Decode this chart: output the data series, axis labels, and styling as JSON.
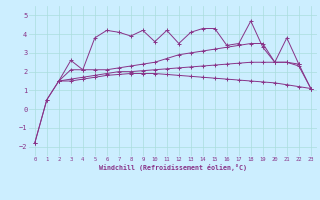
{
  "background_color": "#cceeff",
  "grid_color": "#aadddd",
  "line_color": "#883388",
  "marker": "+",
  "xlabel": "Windchill (Refroidissement éolien,°C)",
  "xlim": [
    -0.5,
    23.5
  ],
  "ylim": [
    -2.5,
    5.5
  ],
  "yticks": [
    -2,
    -1,
    0,
    1,
    2,
    3,
    4,
    5
  ],
  "xticks": [
    0,
    1,
    2,
    3,
    4,
    5,
    6,
    7,
    8,
    9,
    10,
    11,
    12,
    13,
    14,
    15,
    16,
    17,
    18,
    19,
    20,
    21,
    22,
    23
  ],
  "lines": [
    {
      "x": [
        0,
        1,
        2,
        3,
        4,
        5,
        6,
        7,
        8,
        9,
        10,
        11,
        12,
        13,
        14,
        15,
        16,
        17,
        18,
        19,
        20,
        21,
        22,
        23
      ],
      "y": [
        -1.8,
        0.5,
        1.5,
        2.6,
        2.1,
        3.8,
        4.2,
        4.1,
        3.9,
        4.2,
        3.6,
        4.2,
        3.5,
        4.1,
        4.3,
        4.3,
        3.4,
        3.5,
        4.7,
        3.3,
        2.5,
        3.8,
        2.4,
        null
      ]
    },
    {
      "x": [
        0,
        1,
        2,
        3,
        4,
        5,
        6,
        7,
        8,
        9,
        10,
        11,
        12,
        13,
        14,
        15,
        16,
        17,
        18,
        19,
        20,
        21,
        22,
        23
      ],
      "y": [
        -1.8,
        0.5,
        1.5,
        2.1,
        2.1,
        2.1,
        2.1,
        2.2,
        2.3,
        2.4,
        2.5,
        2.7,
        2.9,
        3.0,
        3.1,
        3.2,
        3.3,
        3.4,
        3.5,
        3.5,
        2.5,
        2.5,
        2.3,
        1.1
      ]
    },
    {
      "x": [
        2,
        3,
        4,
        5,
        6,
        7,
        8,
        9,
        10,
        11,
        12,
        13,
        14,
        15,
        16,
        17,
        18,
        19,
        20,
        21,
        22,
        23
      ],
      "y": [
        1.5,
        1.5,
        1.6,
        1.7,
        1.8,
        1.85,
        1.9,
        1.9,
        1.9,
        1.85,
        1.8,
        1.75,
        1.7,
        1.65,
        1.6,
        1.55,
        1.5,
        1.45,
        1.4,
        1.3,
        1.2,
        1.1
      ]
    },
    {
      "x": [
        2,
        3,
        4,
        5,
        6,
        7,
        8,
        9,
        10,
        11,
        12,
        13,
        14,
        15,
        16,
        17,
        18,
        19,
        20,
        21,
        22,
        23
      ],
      "y": [
        1.5,
        1.6,
        1.7,
        1.8,
        1.9,
        2.0,
        2.0,
        2.05,
        2.1,
        2.15,
        2.2,
        2.25,
        2.3,
        2.35,
        2.4,
        2.45,
        2.5,
        2.5,
        2.5,
        2.5,
        2.4,
        1.1
      ]
    }
  ]
}
